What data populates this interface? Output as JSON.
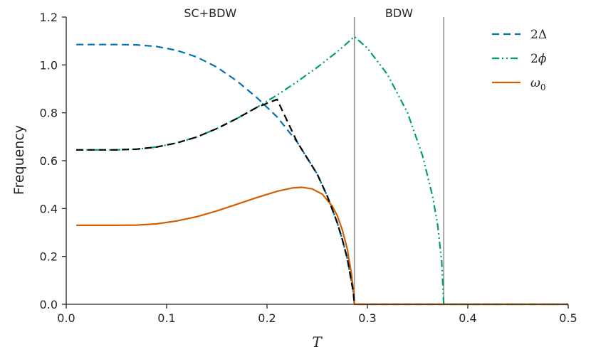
{
  "chart_data": {
    "type": "line",
    "xlabel": "T",
    "ylabel": "Frequency",
    "xlim": [
      0.0,
      0.5
    ],
    "ylim": [
      0.0,
      1.2
    ],
    "x_ticks": [
      "0.0",
      "0.1",
      "0.2",
      "0.3",
      "0.4",
      "0.5"
    ],
    "y_ticks": [
      "0.0",
      "0.2",
      "0.4",
      "0.6",
      "0.8",
      "1.0",
      "1.2"
    ],
    "grid": false,
    "legend_position": "top-right",
    "regions": [
      {
        "label": "SC+BDW",
        "x_start": 0.0,
        "x_end": 0.287
      },
      {
        "label": "BDW",
        "x_start": 0.287,
        "x_end": 0.376
      }
    ],
    "vertical_lines": [
      0.287,
      0.376
    ],
    "series": [
      {
        "name": "2Δ",
        "legend_main": "2",
        "legend_sym": "Δ",
        "color": "#0072b2",
        "style": "dashed",
        "x": [
          0.01,
          0.03,
          0.05,
          0.07,
          0.09,
          0.11,
          0.13,
          0.15,
          0.17,
          0.19,
          0.21,
          0.23,
          0.25,
          0.26,
          0.27,
          0.275,
          0.28,
          0.283,
          0.286,
          0.287,
          0.3,
          0.35,
          0.4,
          0.45,
          0.5
        ],
        "values": [
          1.085,
          1.085,
          1.085,
          1.084,
          1.077,
          1.061,
          1.033,
          0.991,
          0.933,
          0.863,
          0.783,
          0.678,
          0.544,
          0.452,
          0.34,
          0.27,
          0.19,
          0.12,
          0.05,
          0.0,
          0.0,
          0.0,
          0.0,
          0.0,
          0.0
        ]
      },
      {
        "name": "2ϕ",
        "legend_main": "2",
        "legend_sym": "ϕ",
        "color": "#009e73",
        "style": "dashdotdot",
        "x": [
          0.01,
          0.03,
          0.05,
          0.07,
          0.09,
          0.11,
          0.13,
          0.15,
          0.17,
          0.19,
          0.21,
          0.23,
          0.25,
          0.27,
          0.287,
          0.3,
          0.32,
          0.34,
          0.355,
          0.365,
          0.37,
          0.374,
          0.376,
          0.4,
          0.45,
          0.5
        ],
        "values": [
          0.645,
          0.645,
          0.645,
          0.648,
          0.657,
          0.674,
          0.699,
          0.734,
          0.776,
          0.823,
          0.874,
          0.93,
          0.99,
          1.055,
          1.118,
          1.07,
          0.96,
          0.8,
          0.62,
          0.45,
          0.33,
          0.18,
          0.0,
          0.0,
          0.0,
          0.0
        ]
      },
      {
        "name": "ω0",
        "legend_main": "ω",
        "legend_sub": "0",
        "color": "#d55e00",
        "style": "solid",
        "x": [
          0.01,
          0.03,
          0.05,
          0.07,
          0.09,
          0.11,
          0.13,
          0.15,
          0.17,
          0.19,
          0.21,
          0.225,
          0.235,
          0.245,
          0.255,
          0.265,
          0.27,
          0.275,
          0.28,
          0.284,
          0.286,
          0.287,
          0.3,
          0.35,
          0.4,
          0.45,
          0.5
        ],
        "values": [
          0.33,
          0.33,
          0.33,
          0.331,
          0.336,
          0.348,
          0.366,
          0.39,
          0.418,
          0.446,
          0.472,
          0.486,
          0.489,
          0.482,
          0.46,
          0.41,
          0.37,
          0.31,
          0.23,
          0.13,
          0.06,
          0.0,
          0.0,
          0.0,
          0.0,
          0.0,
          0.0
        ]
      },
      {
        "name": "",
        "color": "#000000",
        "style": "dashed",
        "x": [
          0.01,
          0.03,
          0.05,
          0.07,
          0.09,
          0.11,
          0.13,
          0.15,
          0.17,
          0.19,
          0.21,
          0.23,
          0.25,
          0.26,
          0.27,
          0.275,
          0.28,
          0.283,
          0.286,
          0.287
        ],
        "values": [
          0.645,
          0.645,
          0.645,
          0.648,
          0.657,
          0.674,
          0.699,
          0.734,
          0.776,
          0.823,
          0.856,
          0.678,
          0.544,
          0.452,
          0.34,
          0.27,
          0.19,
          0.12,
          0.05,
          0.0
        ]
      }
    ]
  }
}
